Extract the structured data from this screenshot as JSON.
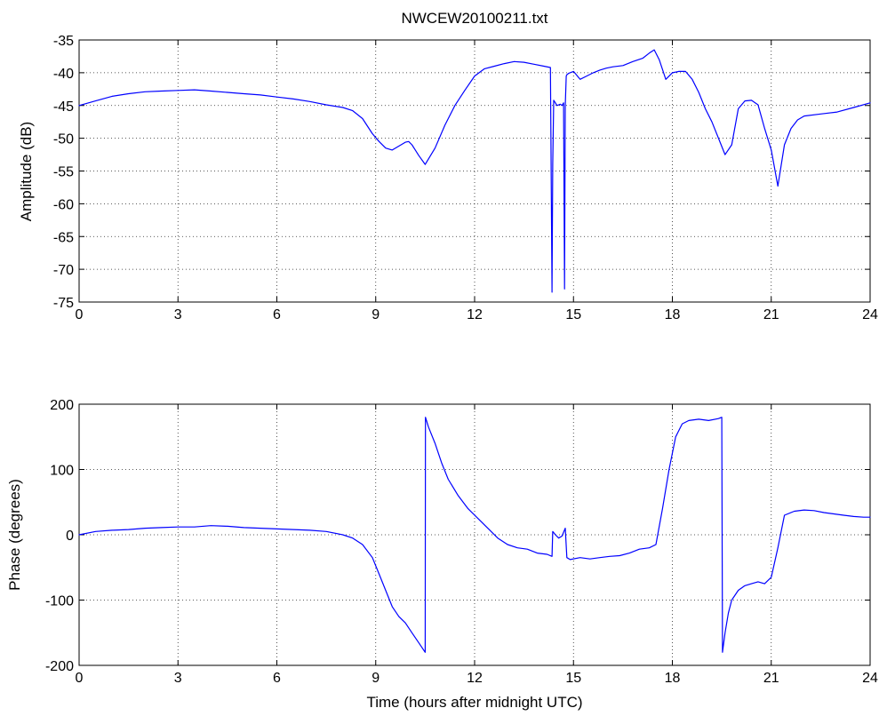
{
  "chart_data": [
    {
      "type": "line",
      "title": "NWCEW20100211.txt",
      "xlabel": "",
      "ylabel": "Amplitude (dB)",
      "xlim": [
        0,
        24
      ],
      "ylim": [
        -75,
        -35
      ],
      "xticks": [
        0,
        3,
        6,
        9,
        12,
        15,
        18,
        21,
        24
      ],
      "yticks": [
        -75,
        -70,
        -65,
        -60,
        -55,
        -50,
        -45,
        -40,
        -35
      ],
      "grid": true,
      "legend": "none",
      "series": [
        {
          "color": "#0000ff",
          "x": [
            0,
            0.5,
            1,
            1.5,
            2,
            2.5,
            3,
            3.5,
            4,
            4.5,
            5,
            5.5,
            6,
            6.5,
            7,
            7.5,
            8,
            8.3,
            8.6,
            8.9,
            9.1,
            9.3,
            9.5,
            9.7,
            9.9,
            10.0,
            10.1,
            10.2,
            10.3,
            10.5,
            10.8,
            11.1,
            11.4,
            11.7,
            12.0,
            12.3,
            12.6,
            12.9,
            13.2,
            13.5,
            13.8,
            14.1,
            14.3,
            14.35,
            14.37,
            14.4,
            14.45,
            14.5,
            14.6,
            14.65,
            14.7,
            14.73,
            14.75,
            14.78,
            14.8,
            14.85,
            15.0,
            15.2,
            15.4,
            15.6,
            15.8,
            16.0,
            16.2,
            16.5,
            16.8,
            17.1,
            17.3,
            17.45,
            17.6,
            17.8,
            18.0,
            18.2,
            18.4,
            18.6,
            18.8,
            19.0,
            19.2,
            19.4,
            19.6,
            19.8,
            20.0,
            20.2,
            20.4,
            20.6,
            20.8,
            21.0,
            21.2,
            21.4,
            21.6,
            21.8,
            22.0,
            22.5,
            23.0,
            23.5,
            24.0
          ],
          "y": [
            -45,
            -44.3,
            -43.6,
            -43.2,
            -42.9,
            -42.8,
            -42.7,
            -42.6,
            -42.8,
            -43.0,
            -43.2,
            -43.4,
            -43.7,
            -44.0,
            -44.4,
            -44.9,
            -45.3,
            -45.8,
            -47.0,
            -49.3,
            -50.5,
            -51.5,
            -51.8,
            -51.2,
            -50.6,
            -50.5,
            -51.0,
            -51.8,
            -52.6,
            -54.0,
            -51.5,
            -48.0,
            -45.0,
            -42.7,
            -40.5,
            -39.4,
            -39.0,
            -38.6,
            -38.3,
            -38.4,
            -38.7,
            -39.0,
            -39.2,
            -73.5,
            -54.0,
            -44.2,
            -44.6,
            -45.0,
            -44.8,
            -45.0,
            -44.6,
            -73.0,
            -45.0,
            -40.5,
            -40.3,
            -40.1,
            -39.8,
            -41.0,
            -40.5,
            -40.0,
            -39.6,
            -39.3,
            -39.1,
            -38.9,
            -38.3,
            -37.8,
            -37.0,
            -36.5,
            -38.0,
            -41.0,
            -40.0,
            -39.8,
            -39.8,
            -41.0,
            -43.0,
            -45.5,
            -47.5,
            -50.0,
            -52.5,
            -51.0,
            -45.5,
            -44.3,
            -44.2,
            -44.9,
            -48.5,
            -51.8,
            -57.3,
            -51.0,
            -48.5,
            -47.2,
            -46.6,
            -46.3,
            -46.0,
            -45.3,
            -44.6
          ]
        }
      ]
    },
    {
      "type": "line",
      "title": "",
      "xlabel": "Time (hours after midnight UTC)",
      "ylabel": "Phase (degrees)",
      "xlim": [
        0,
        24
      ],
      "ylim": [
        -200,
        200
      ],
      "xticks": [
        0,
        3,
        6,
        9,
        12,
        15,
        18,
        21,
        24
      ],
      "yticks": [
        -200,
        -100,
        0,
        100,
        200
      ],
      "grid": true,
      "legend": "none",
      "series": [
        {
          "color": "#0000ff",
          "x": [
            0,
            0.5,
            1,
            1.5,
            2,
            2.5,
            3,
            3.5,
            4,
            4.5,
            5,
            5.5,
            6,
            6.5,
            7,
            7.5,
            8,
            8.3,
            8.6,
            8.9,
            9.1,
            9.3,
            9.5,
            9.7,
            9.9,
            10.1,
            10.3,
            10.5,
            10.51,
            10.6,
            10.8,
            11.0,
            11.2,
            11.5,
            11.8,
            12.1,
            12.4,
            12.7,
            13.0,
            13.3,
            13.6,
            13.9,
            14.2,
            14.35,
            14.37,
            14.45,
            14.55,
            14.65,
            14.75,
            14.8,
            14.9,
            15.2,
            15.5,
            15.8,
            16.1,
            16.4,
            16.7,
            17.0,
            17.3,
            17.5,
            17.7,
            17.9,
            18.1,
            18.3,
            18.5,
            18.8,
            19.1,
            19.4,
            19.5,
            19.52,
            19.6,
            19.7,
            19.8,
            20.0,
            20.2,
            20.4,
            20.6,
            20.8,
            21.0,
            21.2,
            21.4,
            21.7,
            22.0,
            22.3,
            22.6,
            22.9,
            23.2,
            23.5,
            23.8,
            24.0
          ],
          "y": [
            0,
            5,
            7,
            8,
            10,
            11,
            12,
            12,
            14,
            13,
            11,
            10,
            9,
            8,
            7,
            5,
            0,
            -5,
            -15,
            -35,
            -60,
            -85,
            -110,
            -125,
            -135,
            -150,
            -165,
            -180,
            180,
            165,
            140,
            110,
            85,
            60,
            40,
            25,
            10,
            -5,
            -15,
            -20,
            -22,
            -28,
            -30,
            -33,
            5,
            0,
            -5,
            -2,
            10,
            -35,
            -38,
            -35,
            -37,
            -35,
            -33,
            -32,
            -28,
            -22,
            -20,
            -15,
            40,
            100,
            150,
            170,
            175,
            177,
            175,
            178,
            180,
            -180,
            -150,
            -120,
            -100,
            -85,
            -78,
            -75,
            -72,
            -75,
            -65,
            -20,
            30,
            36,
            38,
            37,
            34,
            32,
            30,
            28,
            27,
            27
          ]
        }
      ]
    }
  ]
}
